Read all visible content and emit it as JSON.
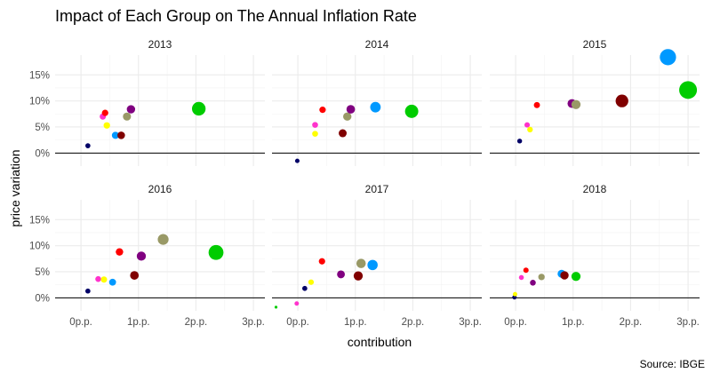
{
  "chart_data": {
    "type": "scatter",
    "title": "Impact of Each Group on The Annual Inflation Rate",
    "xlabel": "contribution",
    "ylabel": "price variation",
    "caption": "Source: IBGE",
    "x_ticks": [
      {
        "value": 0,
        "label": "0p.p."
      },
      {
        "value": 1,
        "label": "1p.p."
      },
      {
        "value": 2,
        "label": "2p.p."
      },
      {
        "value": 3,
        "label": "3p.p."
      }
    ],
    "y_ticks": [
      {
        "value": 0,
        "label": "0%"
      },
      {
        "value": 5,
        "label": "5%"
      },
      {
        "value": 10,
        "label": "10%"
      },
      {
        "value": 15,
        "label": "15%"
      }
    ],
    "xlim": [
      -0.45,
      3.2
    ],
    "ylim": [
      -2.5,
      18.8
    ],
    "reference_line_y": 0,
    "grid": true,
    "size_encodes": "x",
    "panels": [
      {
        "label": "2013",
        "points": [
          {
            "x": 0.12,
            "y": 1.4,
            "color": "#000066"
          },
          {
            "x": 0.38,
            "y": 7.0,
            "color": "#ff33cc"
          },
          {
            "x": 0.42,
            "y": 7.7,
            "color": "#ff0000"
          },
          {
            "x": 0.45,
            "y": 5.3,
            "color": "#ffff00"
          },
          {
            "x": 0.6,
            "y": 3.4,
            "color": "#0099ff"
          },
          {
            "x": 0.7,
            "y": 3.4,
            "color": "#800000"
          },
          {
            "x": 0.8,
            "y": 7.0,
            "color": "#999966"
          },
          {
            "x": 0.87,
            "y": 8.4,
            "color": "#800080"
          },
          {
            "x": 2.05,
            "y": 8.5,
            "color": "#00cc00"
          }
        ]
      },
      {
        "label": "2014",
        "points": [
          {
            "x": -0.01,
            "y": -1.5,
            "color": "#000066"
          },
          {
            "x": 0.3,
            "y": 5.4,
            "color": "#ff33cc"
          },
          {
            "x": 0.43,
            "y": 8.3,
            "color": "#ff0000"
          },
          {
            "x": 0.3,
            "y": 3.7,
            "color": "#ffff00"
          },
          {
            "x": 1.35,
            "y": 8.8,
            "color": "#0099ff"
          },
          {
            "x": 0.78,
            "y": 3.8,
            "color": "#800000"
          },
          {
            "x": 0.86,
            "y": 7.0,
            "color": "#999966"
          },
          {
            "x": 0.92,
            "y": 8.4,
            "color": "#800080"
          },
          {
            "x": 1.98,
            "y": 8.0,
            "color": "#00cc00"
          }
        ]
      },
      {
        "label": "2015",
        "points": [
          {
            "x": 0.07,
            "y": 2.3,
            "color": "#000066"
          },
          {
            "x": 0.2,
            "y": 5.4,
            "color": "#ff33cc"
          },
          {
            "x": 0.37,
            "y": 9.2,
            "color": "#ff0000"
          },
          {
            "x": 0.25,
            "y": 4.5,
            "color": "#ffff00"
          },
          {
            "x": 2.65,
            "y": 18.4,
            "color": "#0099ff"
          },
          {
            "x": 1.85,
            "y": 10.0,
            "color": "#800000"
          },
          {
            "x": 1.05,
            "y": 9.3,
            "color": "#999966"
          },
          {
            "x": 0.98,
            "y": 9.5,
            "color": "#800080"
          },
          {
            "x": 3.0,
            "y": 12.1,
            "color": "#00cc00"
          }
        ]
      },
      {
        "label": "2016",
        "points": [
          {
            "x": 0.12,
            "y": 1.3,
            "color": "#000066"
          },
          {
            "x": 0.3,
            "y": 3.6,
            "color": "#ff33cc"
          },
          {
            "x": 0.67,
            "y": 8.8,
            "color": "#ff0000"
          },
          {
            "x": 0.4,
            "y": 3.5,
            "color": "#ffff00"
          },
          {
            "x": 0.55,
            "y": 3.0,
            "color": "#0099ff"
          },
          {
            "x": 0.93,
            "y": 4.3,
            "color": "#800000"
          },
          {
            "x": 1.43,
            "y": 11.2,
            "color": "#999966"
          },
          {
            "x": 1.05,
            "y": 8.0,
            "color": "#800080"
          },
          {
            "x": 2.35,
            "y": 8.7,
            "color": "#00cc00"
          }
        ]
      },
      {
        "label": "2017",
        "points": [
          {
            "x": 0.12,
            "y": 1.8,
            "color": "#000066"
          },
          {
            "x": -0.02,
            "y": -1.1,
            "color": "#ff33cc"
          },
          {
            "x": 0.42,
            "y": 7.0,
            "color": "#ff0000"
          },
          {
            "x": 0.23,
            "y": 3.0,
            "color": "#ffff00"
          },
          {
            "x": 1.3,
            "y": 6.3,
            "color": "#0099ff"
          },
          {
            "x": 1.05,
            "y": 4.2,
            "color": "#800000"
          },
          {
            "x": 1.1,
            "y": 6.6,
            "color": "#999966"
          },
          {
            "x": 0.75,
            "y": 4.5,
            "color": "#800080"
          },
          {
            "x": -0.38,
            "y": -1.8,
            "color": "#00cc00"
          }
        ]
      },
      {
        "label": "2018",
        "points": [
          {
            "x": -0.02,
            "y": 0.1,
            "color": "#000066"
          },
          {
            "x": 0.1,
            "y": 3.9,
            "color": "#ff33cc"
          },
          {
            "x": 0.18,
            "y": 5.3,
            "color": "#ff0000"
          },
          {
            "x": -0.01,
            "y": 0.7,
            "color": "#ffff00"
          },
          {
            "x": 0.8,
            "y": 4.6,
            "color": "#0099ff"
          },
          {
            "x": 0.85,
            "y": 4.3,
            "color": "#800000"
          },
          {
            "x": 0.45,
            "y": 4.0,
            "color": "#999966"
          },
          {
            "x": 0.3,
            "y": 2.9,
            "color": "#800080"
          },
          {
            "x": 1.05,
            "y": 4.1,
            "color": "#00cc00"
          }
        ]
      }
    ]
  }
}
